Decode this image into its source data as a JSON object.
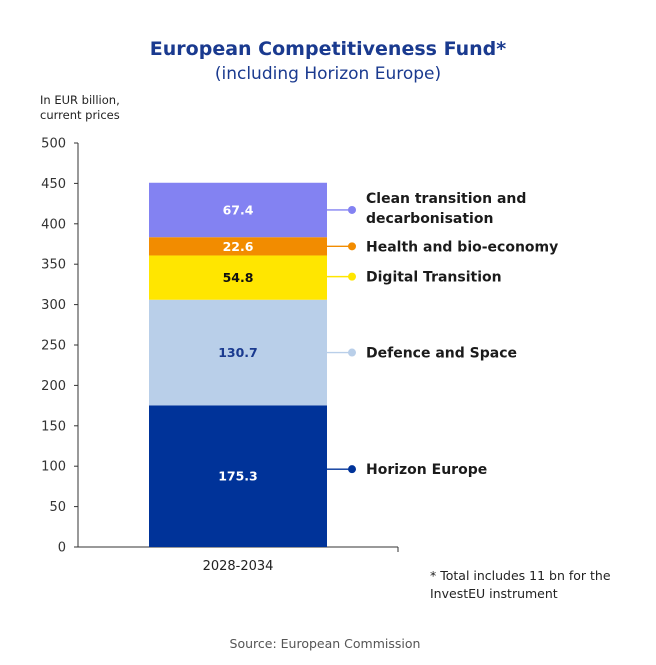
{
  "header": {
    "title": "European Competitiveness Fund*",
    "subtitle": "(including Horizon Europe)",
    "unit_line1": "In EUR billion,",
    "unit_line2": "current prices"
  },
  "chart_data": {
    "type": "bar",
    "stacked": true,
    "title": "European Competitiveness Fund*",
    "subtitle": "(including Horizon Europe)",
    "ylabel": "In EUR billion, current prices",
    "ylim": [
      0,
      500
    ],
    "yticks": [
      0,
      50,
      100,
      150,
      200,
      250,
      300,
      350,
      400,
      450,
      500
    ],
    "grid": false,
    "legend_placement": "right",
    "categories": [
      "2028-2034"
    ],
    "series": [
      {
        "name": "Horizon Europe",
        "values": [
          175.3
        ],
        "label": "175.3",
        "color": "#003399",
        "text_color": "#ffffff"
      },
      {
        "name": "Defence and Space",
        "values": [
          130.7
        ],
        "label": "130.7",
        "color": "#b9cfe9",
        "text_color": "#1a3a8f"
      },
      {
        "name": "Digital Transition",
        "values": [
          54.8
        ],
        "label": "54.8",
        "color": "#ffe600",
        "text_color": "#111111"
      },
      {
        "name": "Health and bio-economy",
        "values": [
          22.6
        ],
        "label": "22.6",
        "color": "#f28c00",
        "text_color": "#ffffff"
      },
      {
        "name": "Clean transition and decarbonisation",
        "values": [
          67.4
        ],
        "label": "67.4",
        "color": "#8382f2",
        "text_color": "#ffffff"
      }
    ]
  },
  "legend": {
    "entries": [
      {
        "lines": [
          "Clean transition and",
          "decarbonisation"
        ],
        "color": "#8382f2"
      },
      {
        "lines": [
          "Health and bio-economy"
        ],
        "color": "#f28c00"
      },
      {
        "lines": [
          "Digital Transition"
        ],
        "color": "#ffe600"
      },
      {
        "lines": [
          "Defence and Space"
        ],
        "color": "#b9cfe9"
      },
      {
        "lines": [
          "Horizon Europe"
        ],
        "color": "#003399"
      }
    ]
  },
  "footnote": {
    "line1": "* Total includes 11 bn for the",
    "line2": "InvestEU instrument"
  },
  "source": "Source: European Commission"
}
